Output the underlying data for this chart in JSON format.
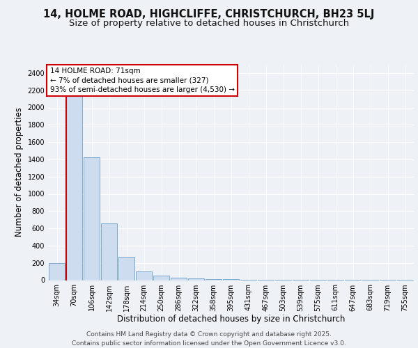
{
  "title_line1": "14, HOLME ROAD, HIGHCLIFFE, CHRISTCHURCH, BH23 5LJ",
  "title_line2": "Size of property relative to detached houses in Christchurch",
  "xlabel": "Distribution of detached houses by size in Christchurch",
  "ylabel": "Number of detached properties",
  "categories": [
    "34sqm",
    "70sqm",
    "106sqm",
    "142sqm",
    "178sqm",
    "214sqm",
    "250sqm",
    "286sqm",
    "322sqm",
    "358sqm",
    "395sqm",
    "431sqm",
    "467sqm",
    "503sqm",
    "539sqm",
    "575sqm",
    "611sqm",
    "647sqm",
    "683sqm",
    "719sqm",
    "755sqm"
  ],
  "values": [
    200,
    2350,
    1420,
    660,
    270,
    100,
    55,
    30,
    20,
    15,
    10,
    5,
    4,
    3,
    2,
    2,
    1,
    1,
    1,
    1,
    1
  ],
  "bar_color": "#cddcee",
  "bar_edge_color": "#6a9fc8",
  "vline_x_index": 1,
  "annotation_box_text": "14 HOLME ROAD: 71sqm\n← 7% of detached houses are smaller (327)\n93% of semi-detached houses are larger (4,530) →",
  "annotation_box_color": "#ffffff",
  "annotation_box_edge_color": "#cc0000",
  "vline_color": "#cc0000",
  "ylim": [
    0,
    2500
  ],
  "yticks": [
    0,
    200,
    400,
    600,
    800,
    1000,
    1200,
    1400,
    1600,
    1800,
    2000,
    2200,
    2400
  ],
  "background_color": "#eef2f7",
  "grid_color": "#ffffff",
  "footer_line1": "Contains HM Land Registry data © Crown copyright and database right 2025.",
  "footer_line2": "Contains public sector information licensed under the Open Government Licence v3.0.",
  "title_fontsize": 10.5,
  "subtitle_fontsize": 9.5,
  "axis_label_fontsize": 8.5,
  "tick_fontsize": 7,
  "annotation_fontsize": 7.5,
  "footer_fontsize": 6.5
}
